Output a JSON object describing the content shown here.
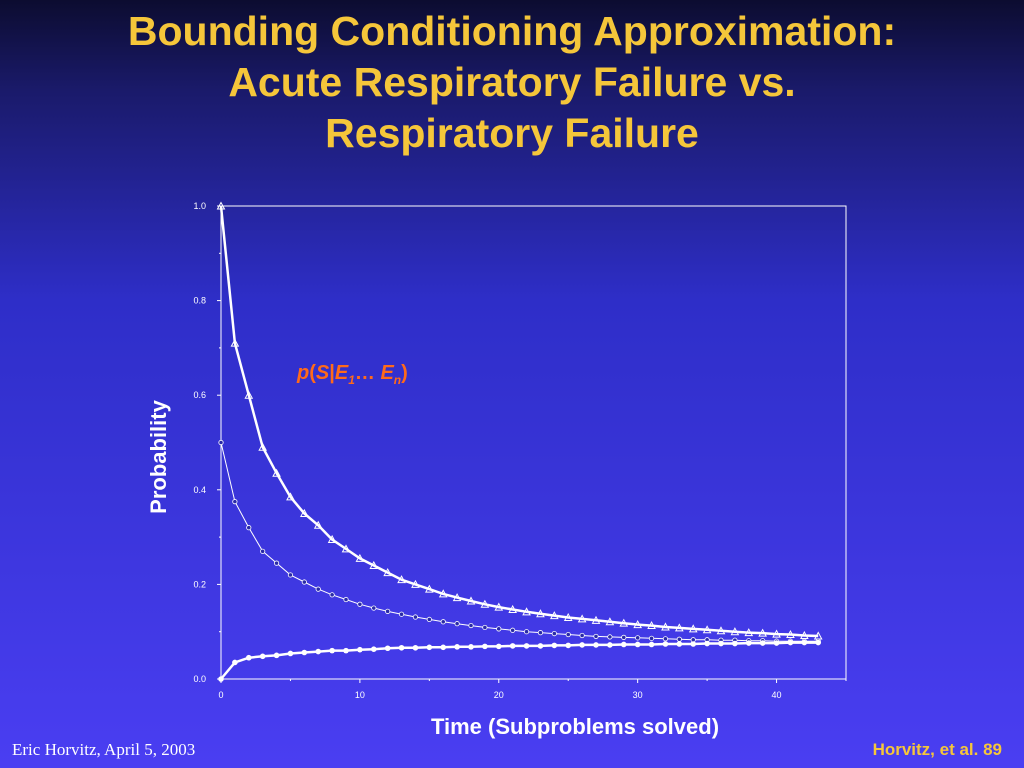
{
  "title": "Bounding Conditioning Approximation:\nAcute Respiratory Failure vs.\nRespiratory Failure",
  "footer": {
    "left": "Eric Horvitz, April 5, 2003",
    "right": "Horvitz, et al. 89"
  },
  "annotation": {
    "p": "p",
    "open": "(",
    "s": "S",
    "bar": "|",
    "e1": "E",
    "sub1": "1",
    "dots": "… ",
    "en": "E",
    "subn": "n",
    "close": ")"
  },
  "colors": {
    "title": "#f5c63a",
    "annotation": "#ff6a1a",
    "lines": "#ffffff"
  },
  "chart_data": {
    "type": "line",
    "xlabel": "Time (Subproblems solved)",
    "ylabel": "Probability",
    "xlim": [
      0,
      45
    ],
    "ylim": [
      0,
      1.0
    ],
    "xticks": [
      0,
      10,
      20,
      30,
      40
    ],
    "yticks": [
      0.0,
      0.2,
      0.4,
      0.6,
      0.8,
      1.0
    ],
    "ytick_labels": [
      "0.0",
      "0.2",
      "0.4",
      "0.6",
      "0.8",
      "1.0"
    ],
    "grid": false,
    "series": [
      {
        "marker": "triangle",
        "x": [
          0,
          1,
          2,
          3,
          4,
          5,
          6,
          7,
          8,
          9,
          10,
          11,
          12,
          13,
          14,
          15,
          16,
          17,
          18,
          19,
          20,
          21,
          22,
          23,
          24,
          25,
          26,
          27,
          28,
          29,
          30,
          31,
          32,
          33,
          34,
          35,
          36,
          37,
          38,
          39,
          40,
          41,
          42,
          43
        ],
        "y": [
          1.0,
          0.71,
          0.6,
          0.49,
          0.435,
          0.385,
          0.35,
          0.325,
          0.295,
          0.275,
          0.255,
          0.24,
          0.225,
          0.21,
          0.2,
          0.19,
          0.18,
          0.172,
          0.165,
          0.158,
          0.152,
          0.147,
          0.142,
          0.138,
          0.134,
          0.13,
          0.127,
          0.124,
          0.121,
          0.118,
          0.115,
          0.113,
          0.11,
          0.108,
          0.106,
          0.104,
          0.102,
          0.1,
          0.098,
          0.097,
          0.095,
          0.094,
          0.092,
          0.091
        ]
      },
      {
        "marker": "circle-open",
        "x": [
          0,
          1,
          2,
          3,
          4,
          5,
          6,
          7,
          8,
          9,
          10,
          11,
          12,
          13,
          14,
          15,
          16,
          17,
          18,
          19,
          20,
          21,
          22,
          23,
          24,
          25,
          26,
          27,
          28,
          29,
          30,
          31,
          32,
          33,
          34,
          35,
          36,
          37,
          38,
          39,
          40,
          41,
          42,
          43
        ],
        "y": [
          0.5,
          0.375,
          0.32,
          0.27,
          0.245,
          0.22,
          0.205,
          0.19,
          0.178,
          0.168,
          0.158,
          0.15,
          0.143,
          0.137,
          0.131,
          0.126,
          0.121,
          0.117,
          0.113,
          0.109,
          0.106,
          0.103,
          0.1,
          0.098,
          0.096,
          0.094,
          0.092,
          0.09,
          0.089,
          0.088,
          0.087,
          0.086,
          0.085,
          0.084,
          0.083,
          0.083,
          0.082,
          0.082,
          0.081,
          0.081,
          0.08,
          0.08,
          0.08,
          0.08
        ]
      },
      {
        "marker": "circle-filled",
        "x": [
          0,
          1,
          2,
          3,
          4,
          5,
          6,
          7,
          8,
          9,
          10,
          11,
          12,
          13,
          14,
          15,
          16,
          17,
          18,
          19,
          20,
          21,
          22,
          23,
          24,
          25,
          26,
          27,
          28,
          29,
          30,
          31,
          32,
          33,
          34,
          35,
          36,
          37,
          38,
          39,
          40,
          41,
          42,
          43
        ],
        "y": [
          0.0,
          0.035,
          0.045,
          0.048,
          0.05,
          0.054,
          0.056,
          0.058,
          0.06,
          0.06,
          0.062,
          0.063,
          0.065,
          0.066,
          0.066,
          0.067,
          0.067,
          0.068,
          0.068,
          0.069,
          0.069,
          0.07,
          0.07,
          0.07,
          0.071,
          0.071,
          0.072,
          0.072,
          0.072,
          0.073,
          0.073,
          0.073,
          0.074,
          0.074,
          0.074,
          0.075,
          0.075,
          0.075,
          0.076,
          0.076,
          0.076,
          0.077,
          0.077,
          0.077
        ]
      }
    ]
  }
}
